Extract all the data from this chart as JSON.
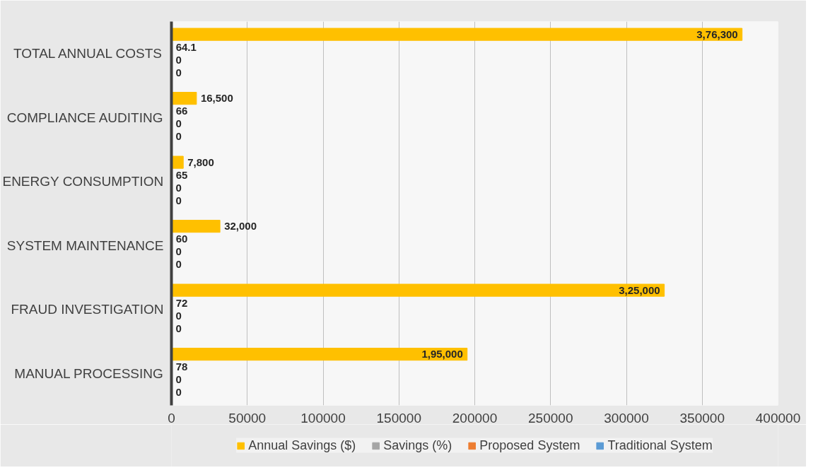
{
  "chart_data": {
    "type": "bar",
    "orientation": "horizontal",
    "categories": [
      "TOTAL ANNUAL COSTS",
      "COMPLIANCE AUDITING",
      "ENERGY CONSUMPTION",
      "SYSTEM MAINTENANCE",
      "FRAUD INVESTIGATION",
      "MANUAL PROCESSING"
    ],
    "series": [
      {
        "name": "Annual Savings ($)",
        "color": "#ffc000",
        "values": [
          376300,
          16500,
          7800,
          32000,
          325000,
          195000
        ],
        "value_labels": [
          "3,76,300",
          "16,500",
          "7,800",
          "32,000",
          "3,25,000",
          "1,95,000"
        ]
      },
      {
        "name": "Savings (%)",
        "color": "#a5a5a5",
        "values": [
          64.1,
          66,
          65,
          60,
          72,
          78
        ],
        "value_labels": [
          "64.1",
          "66",
          "65",
          "60",
          "72",
          "78"
        ]
      },
      {
        "name": "Proposed System",
        "color": "#ed7d31",
        "values": [
          0,
          0,
          0,
          0,
          0,
          0
        ],
        "value_labels": [
          "0",
          "0",
          "0",
          "0",
          "0",
          "0"
        ]
      },
      {
        "name": "Traditional System",
        "color": "#5b9bd5",
        "values": [
          0,
          0,
          0,
          0,
          0,
          0
        ],
        "value_labels": [
          "0",
          "0",
          "0",
          "0",
          "0",
          "0"
        ]
      }
    ],
    "xlim": [
      0,
      400000
    ],
    "xticks": [
      0,
      50000,
      100000,
      150000,
      200000,
      250000,
      300000,
      350000,
      400000
    ],
    "grid": "x",
    "legend": "bottom"
  }
}
